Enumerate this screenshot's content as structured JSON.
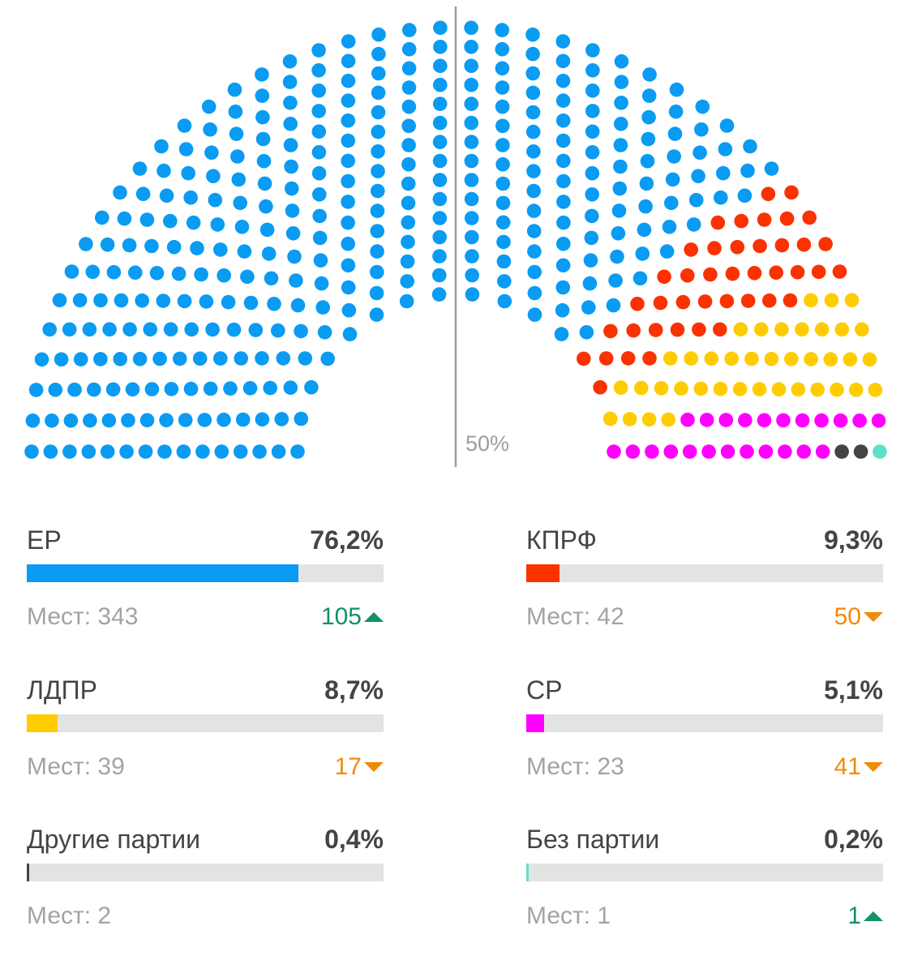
{
  "chart_data": {
    "type": "parliament",
    "majority_label": "50%",
    "total_seats": 450,
    "parties": [
      {
        "id": "er",
        "name": "ЕР",
        "percent_label": "76,2%",
        "percent": 76.2,
        "seats_label": "Мест: 343",
        "seats": 343,
        "delta": "105",
        "delta_direction": "up",
        "color": "#0a9bf3"
      },
      {
        "id": "kprf",
        "name": "КПРФ",
        "percent_label": "9,3%",
        "percent": 9.3,
        "seats_label": "Мест: 42",
        "seats": 42,
        "delta": "50",
        "delta_direction": "down",
        "color": "#fa3200"
      },
      {
        "id": "ldpr",
        "name": "ЛДПР",
        "percent_label": "8,7%",
        "percent": 8.7,
        "seats_label": "Мест: 39",
        "seats": 39,
        "delta": "17",
        "delta_direction": "down",
        "color": "#ffcc00"
      },
      {
        "id": "sr",
        "name": "СР",
        "percent_label": "5,1%",
        "percent": 5.1,
        "seats_label": "Мест: 23",
        "seats": 23,
        "delta": "41",
        "delta_direction": "down",
        "color": "#ff00ff"
      },
      {
        "id": "other",
        "name": "Другие партии",
        "percent_label": "0,4%",
        "percent": 0.4,
        "seats_label": "Мест: 2",
        "seats": 2,
        "delta": "",
        "delta_direction": "",
        "color": "#444444"
      },
      {
        "id": "noparty",
        "name": "Без партии",
        "percent_label": "0,2%",
        "percent": 0.2,
        "seats_label": "Мест: 1",
        "seats": 1,
        "delta": "1",
        "delta_direction": "up",
        "color": "#5fe0c8"
      }
    ],
    "seat_order": [
      "er",
      "kprf",
      "ldpr",
      "sr",
      "other",
      "noparty"
    ]
  }
}
